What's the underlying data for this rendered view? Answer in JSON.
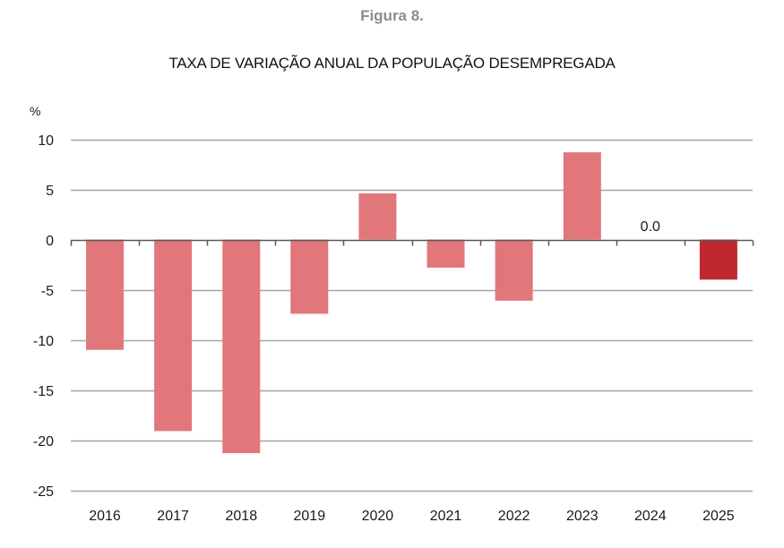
{
  "figure_label": "Figura 8.",
  "chart_data": {
    "type": "bar",
    "title": "TAXA DE VARIAÇÃO ANUAL DA POPULAÇÃO DESEMPREGADA",
    "xlabel": "",
    "ylabel": "%",
    "categories": [
      "2016",
      "2017",
      "2018",
      "2019",
      "2020",
      "2021",
      "2022",
      "2023",
      "2024",
      "2025"
    ],
    "values": [
      -11.0,
      -19.1,
      -21.3,
      -7.4,
      4.6,
      -2.8,
      -6.1,
      8.7,
      0.0,
      -4.0
    ],
    "ylim": [
      -25,
      10
    ],
    "yticks": [
      10,
      5,
      0,
      -5,
      -10,
      -15,
      -20,
      -25
    ],
    "grid": true,
    "legend": "none",
    "annotations": [
      {
        "category": "2024",
        "text": "0.0"
      }
    ],
    "colors": {
      "default": "#e1767b",
      "highlight": "#c0282f",
      "highlight_category": "2025",
      "grid": "#a6a6a6",
      "axis": "#595959"
    }
  }
}
